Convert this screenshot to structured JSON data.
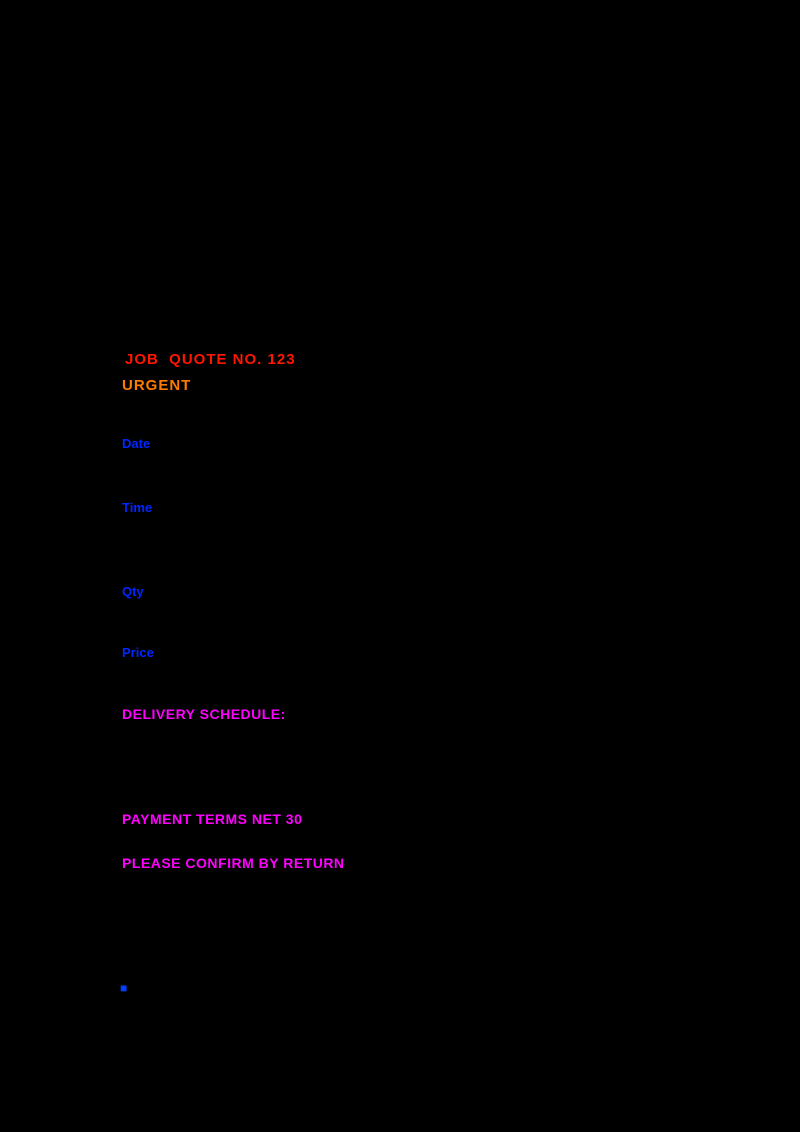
{
  "page": {
    "background_color": "#000000",
    "accent_colors": {
      "heading_red": "#ff1500",
      "heading_orange": "#ff7b00",
      "link_blue": "#0026ff",
      "link_magenta": "#ff00ff"
    }
  },
  "document": {
    "heading": {
      "text": "JOB  QUOTE NO. 123"
    },
    "subheading": {
      "text": "URGENT"
    },
    "blue_links": [
      {
        "label": "Date"
      },
      {
        "label": "Time"
      },
      {
        "label": "Qty"
      },
      {
        "label": "Price"
      }
    ],
    "magenta_links": [
      {
        "label": "DELIVERY SCHEDULE:"
      },
      {
        "label": "PAYMENT TERMS NET 30"
      },
      {
        "label": "PLEASE CONFIRM BY RETURN"
      }
    ],
    "marker": {
      "text": "■"
    }
  }
}
